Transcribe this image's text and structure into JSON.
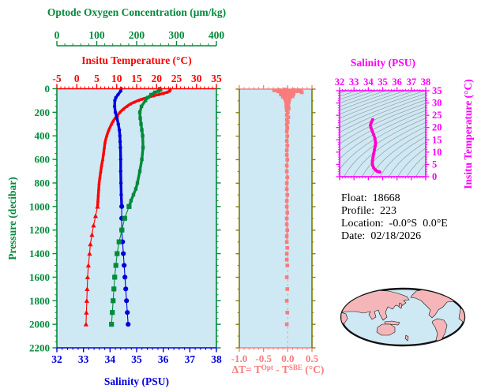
{
  "figure": {
    "colors": {
      "green": "#008B3A",
      "red": "#FF0000",
      "blue": "#0000DD",
      "salmon": "#F87C7C",
      "olive": "#7C7C00",
      "magenta": "#FF00FF",
      "ts_curve": "#FF00CC",
      "panel_bg": "#CEE8F4",
      "contour": "#9A9A9A",
      "zero_line": "#BBBBBB",
      "map_land": "#F4B6B9",
      "map_outline": "#111111",
      "text": "#000000"
    },
    "titles": {
      "oxygen_axis": "Optode Oxygen Concentration (μm/kg)",
      "temperature_axis": "Insitu Temperature (°C)",
      "pressure_axis": "Pressure (decibar)",
      "salinity_axis": "Salinity (PSU)",
      "ts_salinity_axis": "Salinity (PSU)",
      "ts_temperature_axis": "Insitu Temperature (°C)",
      "delta_t_prefix": "ΔT= T",
      "delta_t_sup1": "Opt",
      "delta_t_mid": " - T",
      "delta_t_sup2": "SBE",
      "delta_t_suffix": " (°C)"
    },
    "info": {
      "float_label": "Float:",
      "float_value": "18668",
      "profile_label": "Profile:",
      "profile_value": "223",
      "location_label": "Location:",
      "location_value": "-0.0°S  0.0°E",
      "date_label": "Date:",
      "date_value": "02/18/2026"
    }
  },
  "chart_data": [
    {
      "type": "line",
      "name": "profile-panel",
      "ylabel": "Pressure (decibar)",
      "ylim": [
        0,
        2200
      ],
      "pressure_ticks": [
        0,
        200,
        400,
        600,
        800,
        1000,
        1200,
        1400,
        1600,
        1800,
        2000,
        2200
      ],
      "axes": {
        "oxygen": {
          "label": "Optode Oxygen Concentration (μm/kg)",
          "range": [
            0,
            400
          ],
          "ticks": [
            0,
            100,
            200,
            300,
            400
          ],
          "minor_step": 20
        },
        "temperature": {
          "label": "Insitu Temperature (°C)",
          "range": [
            -5,
            35
          ],
          "ticks": [
            -5,
            0,
            5,
            10,
            15,
            20,
            25,
            30,
            35
          ],
          "minor_step": 1
        },
        "salinity": {
          "label": "Salinity (PSU)",
          "range": [
            32,
            38
          ],
          "ticks": [
            32,
            33,
            34,
            35,
            36,
            37,
            38
          ],
          "minor_step": 0.2
        }
      },
      "series": [
        {
          "name": "temperature",
          "units": "°C",
          "marker": "triangle",
          "color_key": "red",
          "points": [
            [
              0,
              23.4
            ],
            [
              10,
              23.4
            ],
            [
              20,
              23.2
            ],
            [
              30,
              22.6
            ],
            [
              40,
              21.6
            ],
            [
              50,
              20.4
            ],
            [
              60,
              19.2
            ],
            [
              75,
              17.6
            ],
            [
              90,
              16.2
            ],
            [
              100,
              15.4
            ],
            [
              115,
              14.3
            ],
            [
              130,
              13.4
            ],
            [
              150,
              12.5
            ],
            [
              175,
              11.6
            ],
            [
              200,
              10.8
            ],
            [
              225,
              10.2
            ],
            [
              250,
              9.6
            ],
            [
              275,
              9.1
            ],
            [
              300,
              8.7
            ],
            [
              350,
              8.0
            ],
            [
              400,
              7.5
            ],
            [
              450,
              7.1
            ],
            [
              500,
              6.9
            ],
            [
              550,
              6.7
            ],
            [
              600,
              6.5
            ],
            [
              650,
              6.2
            ],
            [
              700,
              6.0
            ],
            [
              750,
              5.8
            ],
            [
              800,
              5.6
            ],
            [
              850,
              5.5
            ],
            [
              900,
              5.4
            ],
            [
              950,
              5.3
            ],
            [
              1000,
              5.2
            ],
            [
              1080,
              4.7
            ],
            [
              1160,
              4.2
            ],
            [
              1240,
              3.8
            ],
            [
              1320,
              3.4
            ],
            [
              1400,
              3.2
            ],
            [
              1500,
              2.9
            ],
            [
              1600,
              2.7
            ],
            [
              1700,
              2.6
            ],
            [
              1800,
              2.5
            ],
            [
              1900,
              2.4
            ],
            [
              2000,
              2.3
            ]
          ]
        },
        {
          "name": "salinity",
          "units": "PSU",
          "marker": "circle",
          "color_key": "blue",
          "points": [
            [
              0,
              34.42
            ],
            [
              20,
              34.4
            ],
            [
              50,
              34.3
            ],
            [
              75,
              34.22
            ],
            [
              100,
              34.18
            ],
            [
              150,
              34.17
            ],
            [
              200,
              34.2
            ],
            [
              250,
              34.26
            ],
            [
              300,
              34.31
            ],
            [
              350,
              34.35
            ],
            [
              400,
              34.37
            ],
            [
              450,
              34.38
            ],
            [
              500,
              34.39
            ],
            [
              600,
              34.4
            ],
            [
              700,
              34.4
            ],
            [
              800,
              34.41
            ],
            [
              900,
              34.42
            ],
            [
              1000,
              34.44
            ],
            [
              1100,
              34.44
            ],
            [
              1200,
              34.44
            ],
            [
              1300,
              34.47
            ],
            [
              1400,
              34.5
            ],
            [
              1500,
              34.53
            ],
            [
              1600,
              34.56
            ],
            [
              1700,
              34.59
            ],
            [
              1800,
              34.62
            ],
            [
              1900,
              34.65
            ],
            [
              2000,
              34.68
            ]
          ]
        },
        {
          "name": "oxygen",
          "units": "μm/kg",
          "marker": "square",
          "color_key": "green",
          "points": [
            [
              0,
              258
            ],
            [
              10,
              260
            ],
            [
              20,
              255
            ],
            [
              30,
              246
            ],
            [
              50,
              236
            ],
            [
              75,
              228
            ],
            [
              100,
              222
            ],
            [
              150,
              212
            ],
            [
              200,
              208
            ],
            [
              250,
              209
            ],
            [
              300,
              211
            ],
            [
              350,
              213
            ],
            [
              400,
              215
            ],
            [
              500,
              216
            ],
            [
              600,
              213
            ],
            [
              700,
              208
            ],
            [
              800,
              202
            ],
            [
              850,
              198
            ],
            [
              900,
              192
            ],
            [
              950,
              186
            ],
            [
              1000,
              181
            ],
            [
              1100,
              170
            ],
            [
              1200,
              163
            ],
            [
              1300,
              156
            ],
            [
              1400,
              151
            ],
            [
              1500,
              148
            ],
            [
              1600,
              145
            ],
            [
              1700,
              143
            ],
            [
              1800,
              141
            ],
            [
              1900,
              139
            ],
            [
              2000,
              137
            ]
          ]
        }
      ],
      "thick_above_pressure": 1000
    },
    {
      "type": "scatter",
      "name": "delta-t-panel",
      "xlabel": "ΔT= TOpt - TSBE (°C)",
      "xlim": [
        -1.0,
        0.5
      ],
      "ticks": [
        -1.0,
        -0.5,
        0.0,
        0.5
      ],
      "tick_labels": [
        "-1.0",
        "-0.5",
        "0.0",
        "0.5"
      ],
      "minor_step": 0.1,
      "ylim": [
        0,
        2200
      ],
      "zero_reference_line": 0.0,
      "series": [
        {
          "name": "delta-t",
          "marker": "square",
          "color_key": "salmon",
          "points": [
            [
              3,
              -0.05
            ],
            [
              5,
              0.12
            ],
            [
              7,
              -0.18
            ],
            [
              9,
              0.22
            ],
            [
              11,
              -0.28
            ],
            [
              13,
              0.15
            ],
            [
              15,
              -0.1
            ],
            [
              17,
              0.27
            ],
            [
              19,
              -0.2
            ],
            [
              21,
              0.1
            ],
            [
              24,
              -0.15
            ],
            [
              27,
              0.29
            ],
            [
              30,
              -0.12
            ],
            [
              34,
              0.06
            ],
            [
              38,
              -0.08
            ],
            [
              42,
              0.12
            ],
            [
              46,
              -0.14
            ],
            [
              50,
              0.08
            ],
            [
              55,
              -0.06
            ],
            [
              60,
              0.1
            ],
            [
              65,
              -0.1
            ],
            [
              70,
              0.05
            ],
            [
              80,
              -0.06
            ],
            [
              90,
              0.03
            ],
            [
              100,
              -0.04
            ],
            [
              110,
              0.02
            ],
            [
              120,
              -0.03
            ],
            [
              135,
              0.01
            ],
            [
              150,
              -0.03
            ],
            [
              165,
              0.02
            ],
            [
              180,
              -0.02
            ],
            [
              200,
              0.0
            ],
            [
              220,
              -0.02
            ],
            [
              240,
              0.01
            ],
            [
              260,
              -0.02
            ],
            [
              280,
              0.0
            ],
            [
              300,
              -0.02
            ],
            [
              330,
              -0.01
            ],
            [
              360,
              -0.02
            ],
            [
              400,
              -0.01
            ],
            [
              440,
              -0.02
            ],
            [
              480,
              -0.01
            ],
            [
              520,
              -0.02
            ],
            [
              560,
              -0.02
            ],
            [
              600,
              -0.01
            ],
            [
              650,
              -0.02
            ],
            [
              700,
              -0.02
            ],
            [
              750,
              -0.01
            ],
            [
              800,
              -0.02
            ],
            [
              850,
              -0.02
            ],
            [
              900,
              -0.01
            ],
            [
              950,
              -0.02
            ],
            [
              1000,
              -0.02
            ],
            [
              1050,
              -0.01
            ],
            [
              1100,
              -0.02
            ],
            [
              1150,
              -0.02
            ],
            [
              1200,
              -0.01
            ],
            [
              1250,
              -0.02
            ],
            [
              1300,
              -0.02
            ],
            [
              1350,
              -0.01
            ],
            [
              1400,
              -0.02
            ],
            [
              1450,
              -0.02
            ],
            [
              1500,
              -0.01
            ],
            [
              1600,
              -0.02
            ],
            [
              1700,
              -0.01
            ],
            [
              1800,
              -0.02
            ],
            [
              1900,
              -0.01
            ],
            [
              2000,
              -0.02
            ]
          ],
          "line_below_pressure": 1300
        }
      ]
    },
    {
      "type": "line",
      "name": "ts-diagram",
      "xlabel": "Salinity (PSU)",
      "ylabel": "Insitu Temperature (°C)",
      "xlim": [
        32,
        38
      ],
      "ylim": [
        0,
        35
      ],
      "salinity_ticks": [
        32,
        33,
        34,
        35,
        36,
        37,
        38
      ],
      "temperature_ticks": [
        0,
        5,
        10,
        15,
        20,
        25,
        30,
        35
      ],
      "isopycnal_contours": {
        "sigma_min": 16,
        "sigma_max": 31,
        "sigma_step": 0.5
      },
      "series": [
        {
          "name": "ts-profile",
          "color_key": "ts_curve",
          "points": [
            [
              34.3,
              23.2
            ],
            [
              34.2,
              22.0
            ],
            [
              34.15,
              21.0
            ],
            [
              34.18,
              20.0
            ],
            [
              34.28,
              18.5
            ],
            [
              34.38,
              17.0
            ],
            [
              34.46,
              15.5
            ],
            [
              34.5,
              14.0
            ],
            [
              34.48,
              12.5
            ],
            [
              34.43,
              11.0
            ],
            [
              34.38,
              9.5
            ],
            [
              34.33,
              8.0
            ],
            [
              34.29,
              6.5
            ],
            [
              34.28,
              5.5
            ],
            [
              34.31,
              4.5
            ],
            [
              34.38,
              3.5
            ],
            [
              34.48,
              2.8
            ],
            [
              34.6,
              2.3
            ],
            [
              34.72,
              2.0
            ],
            [
              34.8,
              1.9
            ]
          ]
        }
      ]
    }
  ]
}
